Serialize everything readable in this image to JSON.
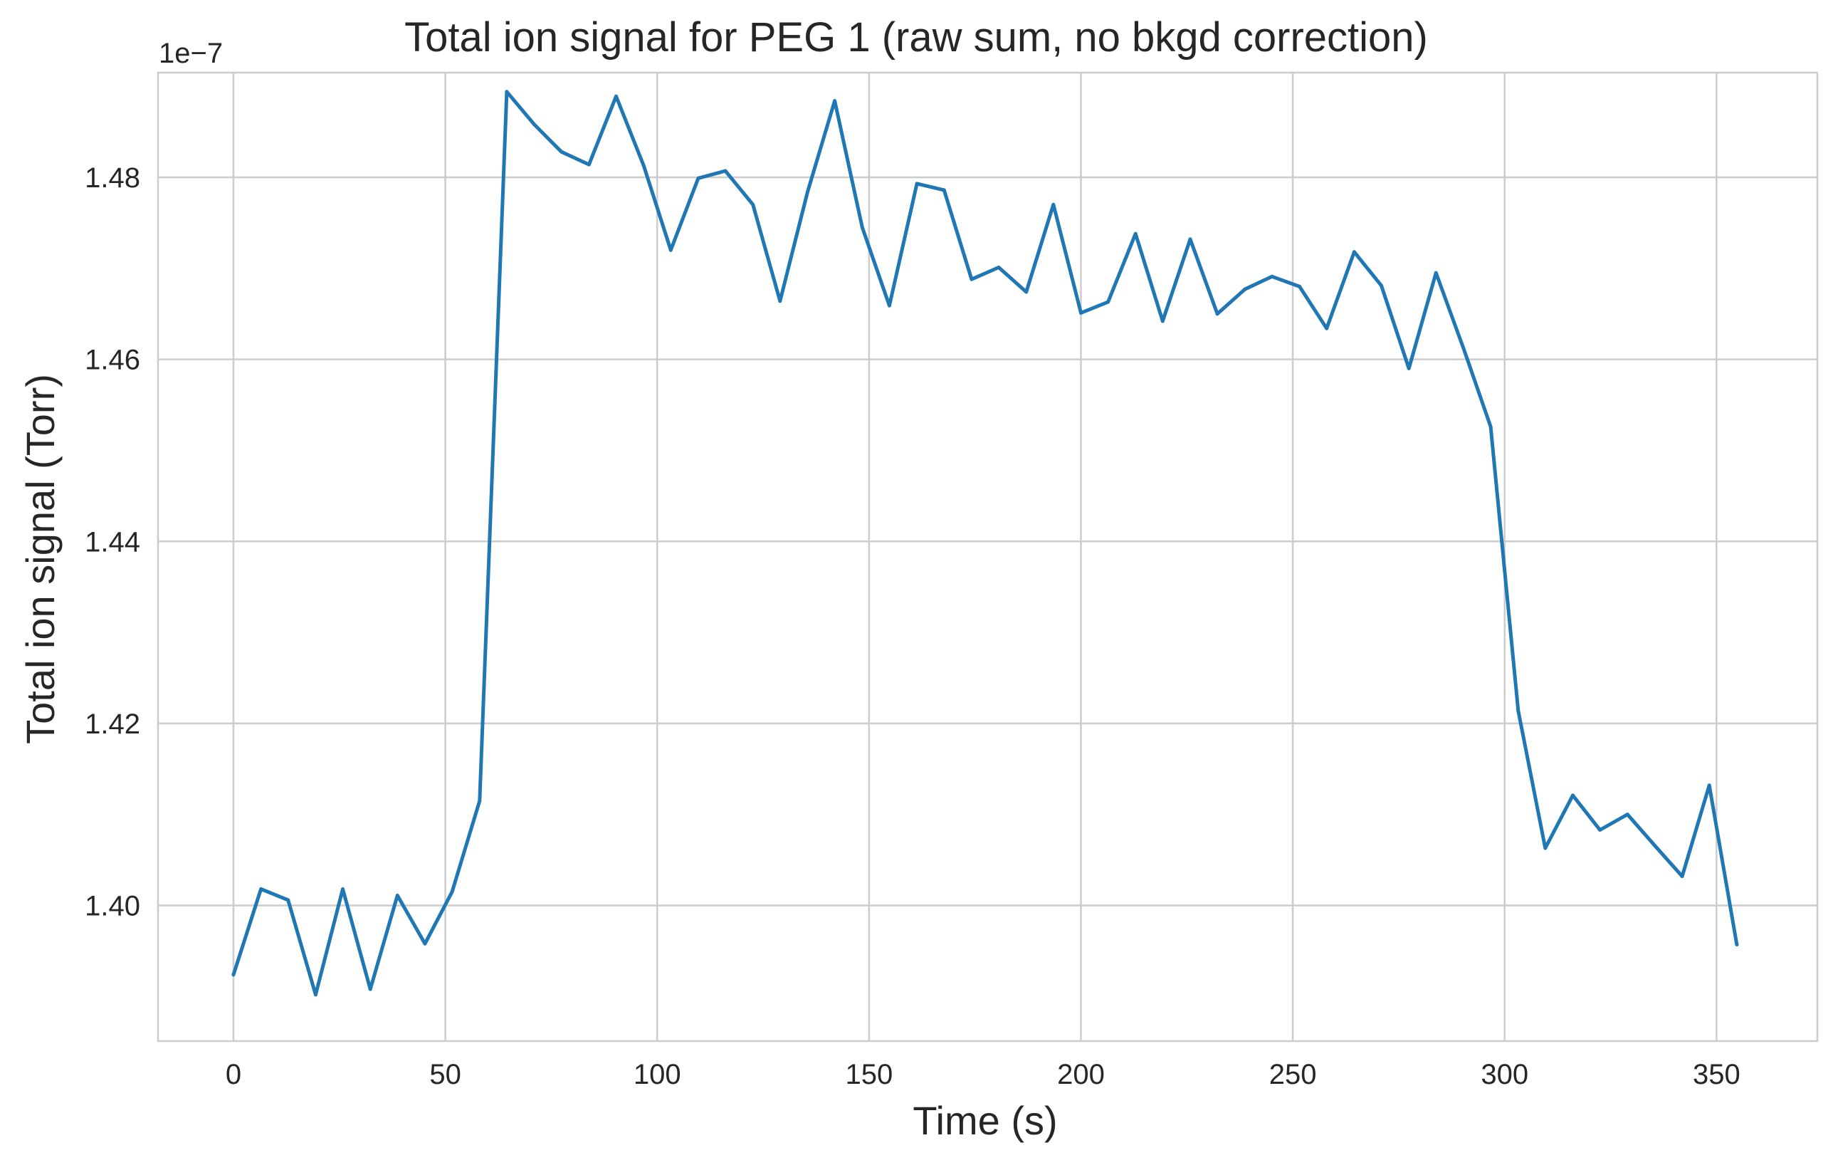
{
  "chart_data": {
    "type": "line",
    "title": "Total ion signal for PEG 1 (raw sum, no bkgd correction)",
    "xlabel": "Time (s)",
    "ylabel": "Total ion signal (Torr)",
    "y_offset_label": "1e−7",
    "y_scale_multiplier": 1e-07,
    "xlim": [
      -17.8,
      373.8
    ],
    "ylim": [
      1.3851,
      1.4915
    ],
    "xticks": [
      0,
      50,
      100,
      150,
      200,
      250,
      300,
      350
    ],
    "xtick_labels": [
      "0",
      "50",
      "100",
      "150",
      "200",
      "250",
      "300",
      "350"
    ],
    "yticks": [
      1.4,
      1.42,
      1.44,
      1.46,
      1.48
    ],
    "ytick_labels": [
      "1.40",
      "1.42",
      "1.44",
      "1.46",
      "1.48"
    ],
    "grid": true,
    "series": [
      {
        "color": "#1f77b4",
        "x": [
          0,
          6.5,
          12.9,
          19.4,
          25.8,
          32.3,
          38.7,
          45.2,
          51.6,
          58.1,
          64.5,
          71.0,
          77.4,
          83.9,
          90.3,
          96.8,
          103.2,
          109.7,
          116.1,
          122.6,
          129.0,
          135.5,
          141.9,
          148.4,
          154.8,
          161.3,
          167.7,
          174.2,
          180.6,
          187.1,
          193.5,
          200.0,
          206.4,
          212.9,
          219.3,
          225.8,
          232.2,
          238.7,
          245.1,
          251.6,
          258.0,
          264.5,
          270.9,
          277.4,
          283.8,
          290.3,
          296.7,
          303.2,
          309.6,
          316.1,
          322.5,
          329.0,
          335.4,
          341.9,
          348.3,
          354.8
        ],
        "y": [
          1.3924,
          1.4018,
          1.4006,
          1.3902,
          1.4018,
          1.3908,
          1.4011,
          1.3958,
          1.4015,
          1.4115,
          1.4894,
          1.4858,
          1.4828,
          1.4814,
          1.4889,
          1.4813,
          1.472,
          1.4799,
          1.4807,
          1.477,
          1.4664,
          1.4784,
          1.4884,
          1.4745,
          1.4659,
          1.4793,
          1.4786,
          1.4688,
          1.4701,
          1.4674,
          1.477,
          1.4651,
          1.4663,
          1.4738,
          1.4642,
          1.4732,
          1.465,
          1.4677,
          1.4691,
          1.468,
          1.4634,
          1.4718,
          1.4681,
          1.459,
          1.4695,
          1.4612,
          1.4526,
          1.4214,
          1.4063,
          1.4121,
          1.4083,
          1.41,
          1.4066,
          1.4032,
          1.4132,
          1.3957
        ]
      }
    ]
  }
}
